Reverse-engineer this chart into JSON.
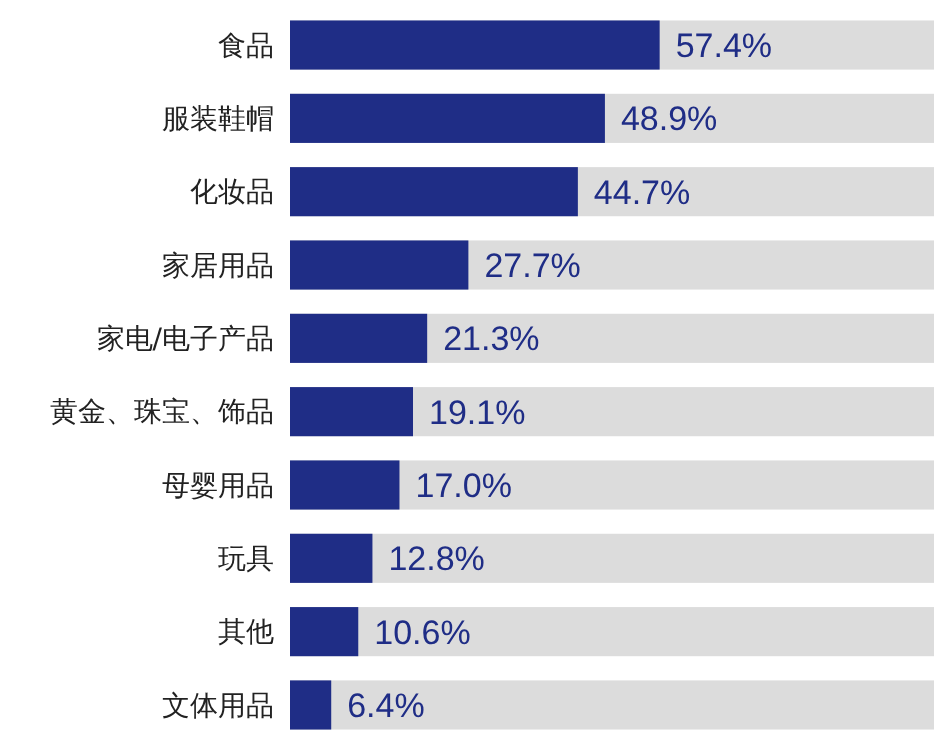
{
  "chart_data": {
    "type": "bar",
    "orientation": "horizontal",
    "categories": [
      "食品",
      "服装鞋帽",
      "化妆品",
      "家居用品",
      "家电/电子产品",
      "黄金、珠宝、饰品",
      "母婴用品",
      "玩具",
      "其他",
      "文体用品"
    ],
    "values": [
      57.4,
      48.9,
      44.7,
      27.7,
      21.3,
      19.1,
      17.0,
      12.8,
      10.6,
      6.4
    ],
    "value_labels": [
      "57.4%",
      "48.9%",
      "44.7%",
      "27.7%",
      "21.3%",
      "19.1%",
      "17.0%",
      "12.8%",
      "10.6%",
      "6.4%"
    ],
    "color": "#1f2d86",
    "xlim": [
      0,
      100
    ],
    "tick_labels": "y"
  }
}
